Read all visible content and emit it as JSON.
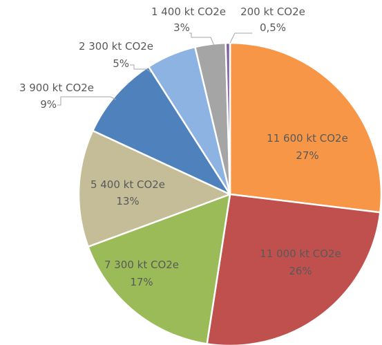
{
  "chart_data": {
    "type": "pie",
    "title": "",
    "start_angle_deg": 0,
    "direction": "clockwise",
    "slices": [
      {
        "value_label": "11 600 kt CO2e",
        "percent_label": "27%",
        "value": 11600,
        "color": "#f79646",
        "label_position": "inside"
      },
      {
        "value_label": "11 000 kt CO2e",
        "percent_label": "26%",
        "value": 11000,
        "color": "#c0504d",
        "label_position": "inside"
      },
      {
        "value_label": "7 300 kt CO2e",
        "percent_label": "17%",
        "value": 7300,
        "color": "#9bbb59",
        "label_position": "inside"
      },
      {
        "value_label": "5 400 kt CO2e",
        "percent_label": "13%",
        "value": 5400,
        "color": "#c4bd97",
        "label_position": "inside"
      },
      {
        "value_label": "3 900 kt CO2e",
        "percent_label": "9%",
        "value": 3900,
        "color": "#4f81bd",
        "label_position": "outside"
      },
      {
        "value_label": "2 300 kt CO2e",
        "percent_label": "5%",
        "value": 2300,
        "color": "#8db3e2",
        "label_position": "outside"
      },
      {
        "value_label": "1 400 kt CO2e",
        "percent_label": "3%",
        "value": 1400,
        "color": "#a5a5a5",
        "label_position": "outside"
      },
      {
        "value_label": "200 kt CO2e",
        "percent_label": "0,5%",
        "value": 200,
        "color": "#8064a2",
        "label_position": "outside"
      }
    ]
  }
}
